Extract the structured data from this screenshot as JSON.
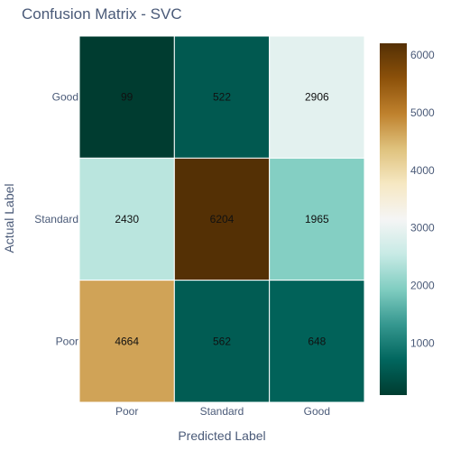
{
  "chart_data": {
    "type": "heatmap",
    "title": "Confusion Matrix - SVC",
    "xlabel": "Predicted Label",
    "ylabel": "Actual Label",
    "x_categories": [
      "Poor",
      "Standard",
      "Good"
    ],
    "y_categories": [
      "Good",
      "Standard",
      "Poor"
    ],
    "values": [
      [
        99,
        522,
        2906
      ],
      [
        2430,
        6204,
        1965
      ],
      [
        4664,
        562,
        648
      ]
    ],
    "zlim": [
      99,
      6204
    ],
    "colorscale": "BrBG_r",
    "colorbar": {
      "ticks": [
        1000,
        2000,
        3000,
        4000,
        5000,
        6000
      ],
      "tick_labels": [
        "1000",
        "2000",
        "3000",
        "4000",
        "5000",
        "6000"
      ]
    },
    "grid": false,
    "legend": "colorbar-right"
  }
}
